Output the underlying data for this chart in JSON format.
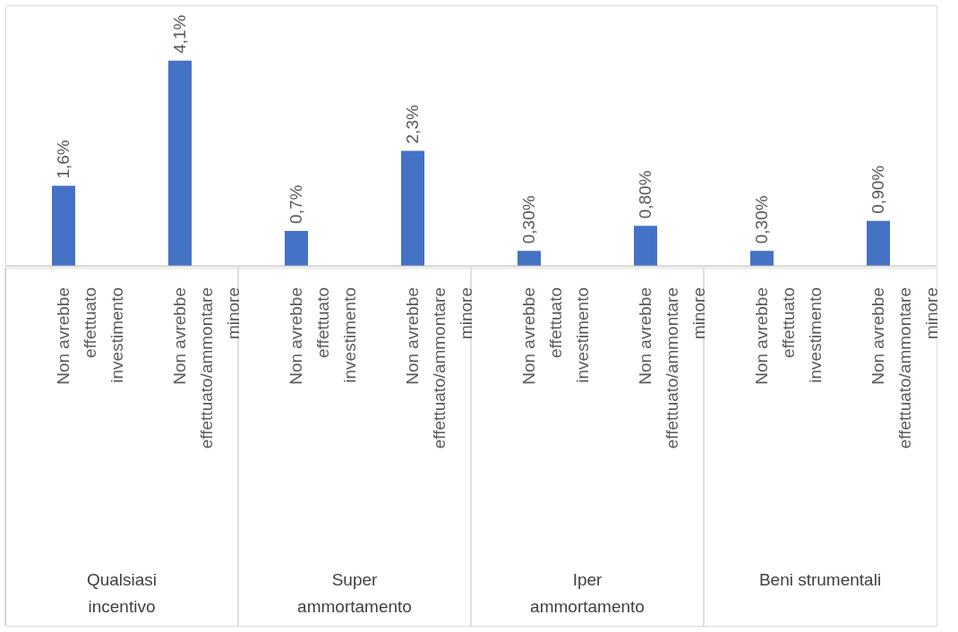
{
  "chart_data": {
    "type": "bar",
    "categories": [
      "Non avrebbe effettuato investimento",
      "Non avrebbe effettuato/ammontare minore",
      "Non avrebbe effettuato investimento",
      "Non avrebbe effettuato/ammontare minore",
      "Non avrebbe effettuato investimento",
      "Non avrebbe effettuato/ammontare minore",
      "Non avrebbe effettuato investimento",
      "Non avrebbe effettuato/ammontare minore"
    ],
    "values": [
      1.6,
      4.1,
      0.7,
      2.3,
      0.3,
      0.8,
      0.3,
      0.9
    ],
    "value_labels": [
      "1,6%",
      "4,1%",
      "0,7%",
      "2,3%",
      "0,30%",
      "0,80%",
      "0,30%",
      "0,90%"
    ],
    "color": "#4472c4",
    "annotations": [
      "Qualsiasi incentivo",
      "Super ammortamento",
      "Iper ammortamento",
      "Beni strumentali"
    ]
  }
}
